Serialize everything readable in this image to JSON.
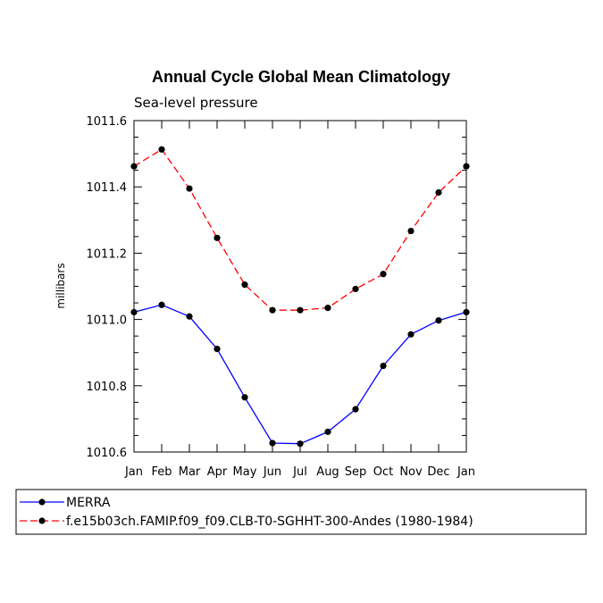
{
  "chart_data": {
    "type": "line",
    "title": "Annual Cycle Global Mean Climatology",
    "subtitle": "Sea-level pressure",
    "xlabel": "",
    "ylabel": "millibars",
    "categories": [
      "Jan",
      "Feb",
      "Mar",
      "Apr",
      "May",
      "Jun",
      "Jul",
      "Aug",
      "Sep",
      "Oct",
      "Nov",
      "Dec",
      "Jan"
    ],
    "ylim": [
      1010.6,
      1011.6
    ],
    "yticks": [
      "1010.6",
      "1010.8",
      "1011.0",
      "1011.2",
      "1011.4",
      "1011.6"
    ],
    "ytick_values": [
      1010.6,
      1010.8,
      1011.0,
      1011.2,
      1011.4,
      1011.6
    ],
    "series": [
      {
        "name": "MERRA",
        "color": "#0000ff",
        "dash": "solid",
        "values": [
          1011.022,
          1011.044,
          1011.009,
          1010.911,
          1010.765,
          1010.627,
          1010.625,
          1010.661,
          1010.729,
          1010.86,
          1010.955,
          1010.997,
          1011.022
        ]
      },
      {
        "name": "f.e15b03ch.FAMIP.f09_f09.CLB-T0-SGHHT-300-Andes (1980-1984)",
        "color": "#ff0000",
        "dash": "dashed",
        "values": [
          1011.462,
          1011.513,
          1011.395,
          1011.246,
          1011.105,
          1011.028,
          1011.028,
          1011.035,
          1011.092,
          1011.137,
          1011.267,
          1011.383,
          1011.462
        ]
      }
    ],
    "legend_position": "bottom"
  }
}
